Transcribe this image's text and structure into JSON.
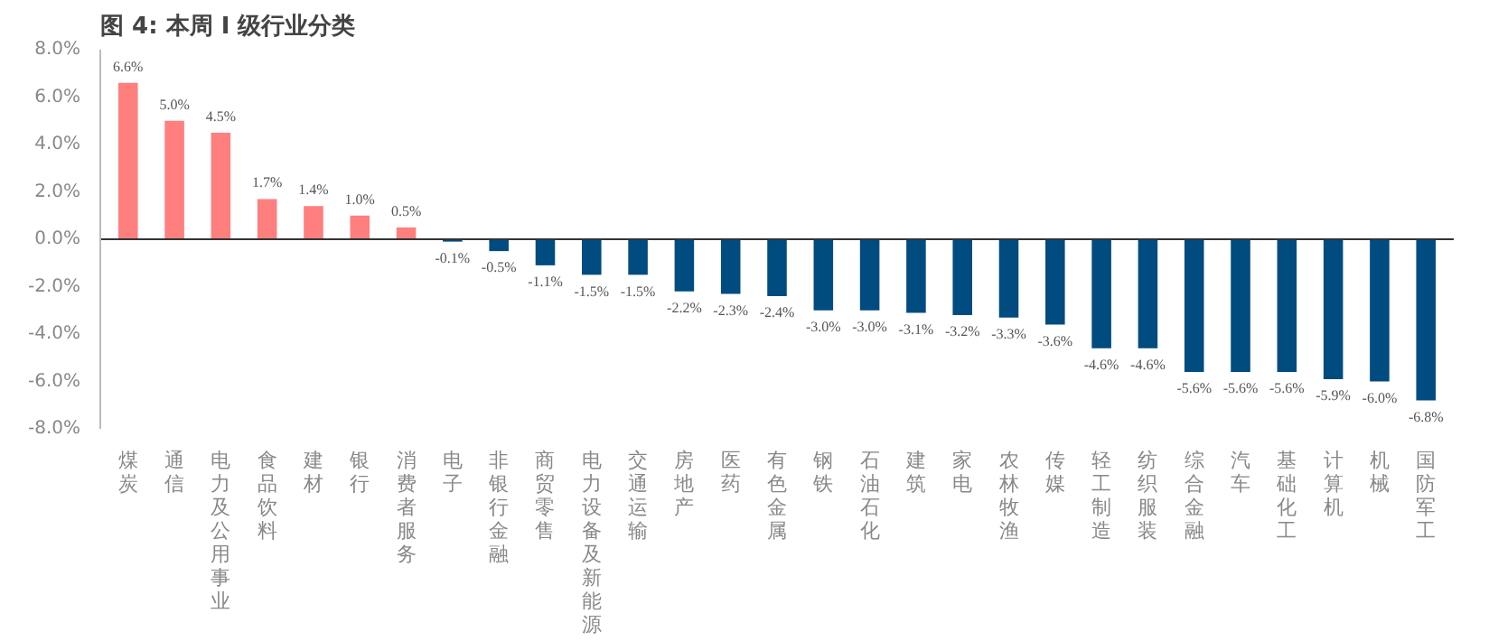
{
  "chart_data": {
    "type": "bar",
    "title": "图 4: 本周 I 级行业分类",
    "categories": [
      "煤炭",
      "通信",
      "电力及公用事业",
      "食品饮料",
      "建材",
      "银行",
      "消费者服务",
      "电子",
      "非银行金融",
      "商贸零售",
      "电力设备及新能源",
      "交通运输",
      "房地产",
      "医药",
      "有色金属",
      "钢铁",
      "石油石化",
      "建筑",
      "家电",
      "农林牧渔",
      "传媒",
      "轻工制造",
      "纺织服装",
      "综合金融",
      "汽车",
      "基础化工",
      "计算机",
      "机械",
      "国防军工"
    ],
    "values": [
      6.6,
      5.0,
      4.5,
      1.7,
      1.4,
      1.0,
      0.5,
      -0.1,
      -0.5,
      -1.1,
      -1.5,
      -1.5,
      -2.2,
      -2.3,
      -2.4,
      -3.0,
      -3.0,
      -3.1,
      -3.2,
      -3.3,
      -3.6,
      -4.6,
      -4.6,
      -5.6,
      -5.6,
      -5.6,
      -5.9,
      -6.0,
      -6.8
    ],
    "value_labels": [
      "6.6%",
      "5.0%",
      "4.5%",
      "1.7%",
      "1.4%",
      "1.0%",
      "0.5%",
      "-0.1%",
      "-0.5%",
      "-1.1%",
      "-1.5%",
      "-1.5%",
      "-2.2%",
      "-2.3%",
      "-2.4%",
      "-3.0%",
      "-3.0%",
      "-3.1%",
      "-3.2%",
      "-3.3%",
      "-3.6%",
      "-4.6%",
      "-4.6%",
      "-5.6%",
      "-5.6%",
      "-5.6%",
      "-5.9%",
      "-6.0%",
      "-6.8%"
    ],
    "colors": [
      "#ff7f7f",
      "#ff7f7f",
      "#ff7f7f",
      "#ff7f7f",
      "#ff7f7f",
      "#ff7f7f",
      "#ff7f7f",
      "#004b7f",
      "#004b7f",
      "#004b7f",
      "#004b7f",
      "#004b7f",
      "#004b7f",
      "#004b7f",
      "#004b7f",
      "#004b7f",
      "#004b7f",
      "#004b7f",
      "#004b7f",
      "#004b7f",
      "#004b7f",
      "#004b7f",
      "#004b7f",
      "#004b7f",
      "#004b7f",
      "#004b7f",
      "#004b7f",
      "#004b7f",
      "#004b7f"
    ],
    "ylim": [
      -8,
      8
    ],
    "yticks": [
      {
        "value": -8,
        "label": "-8.0%"
      },
      {
        "value": -6,
        "label": "-6.0%"
      },
      {
        "value": -4,
        "label": "-4.0%"
      },
      {
        "value": -2,
        "label": "-2.0%"
      },
      {
        "value": 0,
        "label": "0.0%"
      },
      {
        "value": 2,
        "label": "2.0%"
      },
      {
        "value": 4,
        "label": "4.0%"
      },
      {
        "value": 6,
        "label": "6.0%"
      },
      {
        "value": 8,
        "label": "8.0%"
      }
    ],
    "relative": false
  }
}
